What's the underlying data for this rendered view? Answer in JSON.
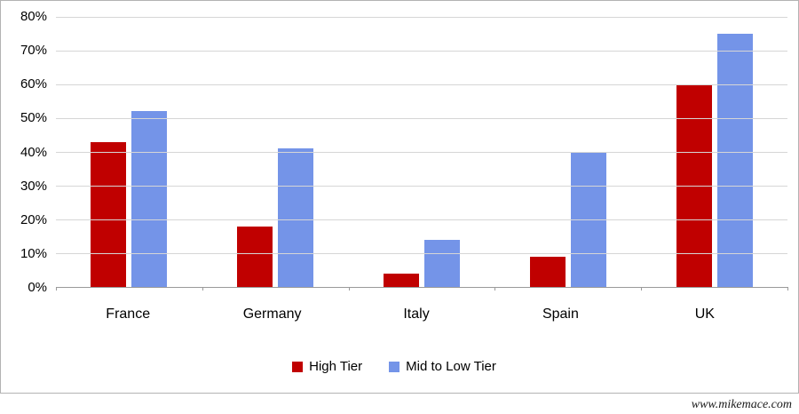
{
  "chart_data": {
    "type": "bar",
    "title": "",
    "xlabel": "",
    "ylabel": "",
    "categories": [
      "France",
      "Germany",
      "Italy",
      "Spain",
      "UK"
    ],
    "series": [
      {
        "name": "High Tier",
        "color": "#c00000",
        "values": [
          43,
          18,
          4,
          9,
          60
        ]
      },
      {
        "name": "Mid to Low Tier",
        "color": "#7494e8",
        "values": [
          52,
          41,
          14,
          40,
          75
        ]
      }
    ],
    "ylim": [
      0,
      80
    ],
    "ytick_step": 10,
    "ytick_labels": [
      "0%",
      "10%",
      "20%",
      "30%",
      "40%",
      "50%",
      "60%",
      "70%",
      "80%"
    ],
    "grid": true,
    "legend_position": "bottom"
  },
  "colors": {
    "gridline": "#d6d6d6",
    "axis_line": "#9a9a9a",
    "frame_border": "#b3b3b3",
    "background": "#ffffff",
    "text": "#000000"
  },
  "watermark": "www.mikemace.com"
}
